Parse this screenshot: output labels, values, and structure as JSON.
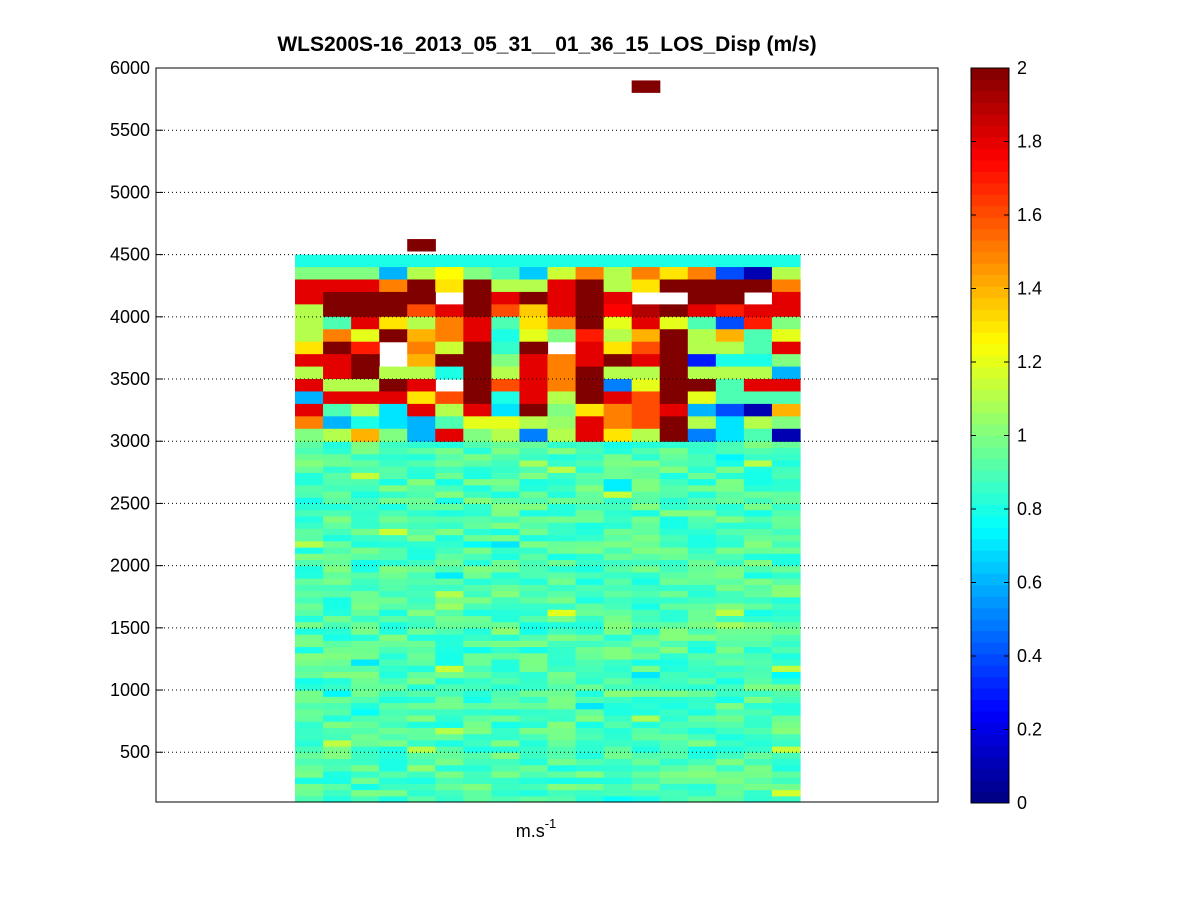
{
  "chart_data": {
    "type": "heatmap",
    "title": "WLS200S-16_2013_05_31__01_36_15_LOS_Disp (m/s)",
    "xlabel": "m.s",
    "xlabel_superscript": "-1",
    "ylabel": "",
    "ylim": [
      100,
      6000
    ],
    "y_ticks": [
      "500",
      "1000",
      "1500",
      "2000",
      "2500",
      "3000",
      "3500",
      "4000",
      "4500",
      "5000",
      "5500",
      "6000"
    ],
    "grid": "horizontal dotted at y ticks",
    "colorbar": {
      "colormap": "jet",
      "range": [
        0,
        2
      ],
      "ticks": [
        "0",
        "0.2",
        "0.4",
        "0.6",
        "0.8",
        "1",
        "1.2",
        "1.4",
        "1.6",
        "1.8",
        "2"
      ]
    },
    "columns": 18,
    "row_height_m": 50,
    "top_rows": {
      "bottom_altitude_m": 3000,
      "rows_top_to_bottom": [
        [
          0.8,
          0.8,
          0.8,
          0.8,
          0.8,
          0.8,
          0.8,
          0.8,
          0.8,
          0.8,
          0.8,
          0.8,
          0.8,
          0.8,
          0.8,
          0.8,
          0.8,
          0.8
        ],
        [
          1.0,
          1.0,
          1.0,
          0.6,
          1.1,
          1.25,
          1.0,
          0.9,
          0.65,
          1.15,
          1.5,
          1.1,
          1.5,
          1.3,
          1.5,
          0.4,
          0.1,
          1.1
        ],
        [
          1.8,
          1.8,
          1.8,
          1.5,
          2.0,
          1.3,
          2.0,
          1.1,
          1.1,
          1.8,
          2.0,
          1.1,
          1.3,
          2.0,
          2.0,
          2.0,
          2.0,
          1.5
        ],
        [
          1.8,
          2.0,
          2.0,
          2.0,
          2.0,
          null,
          2.0,
          1.8,
          2.0,
          1.8,
          2.0,
          1.8,
          null,
          null,
          2.0,
          2.0,
          null,
          1.8
        ],
        [
          1.1,
          2.0,
          2.0,
          2.0,
          1.6,
          1.8,
          2.0,
          1.6,
          1.35,
          1.8,
          2.0,
          1.75,
          1.9,
          2.0,
          1.8,
          1.7,
          1.8,
          1.8
        ],
        [
          1.1,
          0.9,
          1.8,
          1.3,
          1.1,
          1.5,
          1.8,
          0.9,
          1.3,
          1.5,
          2.0,
          1.2,
          1.8,
          1.2,
          0.9,
          0.4,
          1.7,
          1.0
        ],
        [
          1.1,
          1.5,
          1.2,
          2.0,
          1.4,
          1.5,
          1.8,
          0.8,
          1.2,
          1.0,
          1.7,
          1.1,
          1.4,
          2.0,
          1.1,
          1.4,
          0.9,
          1.2
        ],
        [
          1.3,
          2.0,
          1.7,
          null,
          1.5,
          1.15,
          2.0,
          0.85,
          2.0,
          null,
          1.8,
          1.3,
          1.6,
          2.0,
          1.1,
          1.1,
          0.9,
          1.8
        ],
        [
          1.8,
          1.8,
          2.0,
          null,
          1.4,
          2.0,
          2.0,
          1.0,
          1.8,
          1.5,
          1.8,
          2.0,
          1.8,
          2.0,
          0.3,
          0.8,
          0.8,
          1.0
        ],
        [
          1.1,
          1.8,
          2.0,
          1.1,
          1.1,
          0.8,
          2.0,
          1.1,
          1.8,
          1.5,
          2.0,
          1.1,
          1.1,
          2.0,
          1.1,
          1.1,
          1.1,
          0.6
        ],
        [
          1.8,
          1.1,
          1.1,
          2.0,
          1.8,
          null,
          2.0,
          1.6,
          1.8,
          1.5,
          2.0,
          0.5,
          1.2,
          2.0,
          2.0,
          0.9,
          1.8,
          1.8
        ],
        [
          0.6,
          1.8,
          1.8,
          1.8,
          1.3,
          1.6,
          2.0,
          0.8,
          1.8,
          1.1,
          2.0,
          1.8,
          1.6,
          2.0,
          1.2,
          0.9,
          0.9,
          0.9
        ],
        [
          1.8,
          0.9,
          1.1,
          0.7,
          1.8,
          1.1,
          1.8,
          0.7,
          2.0,
          1.0,
          1.3,
          1.5,
          1.6,
          1.8,
          0.6,
          0.4,
          0.1,
          1.4
        ],
        [
          1.5,
          0.6,
          0.8,
          0.7,
          0.6,
          0.9,
          1.2,
          1.2,
          1.1,
          1.05,
          1.8,
          1.5,
          1.6,
          2.0,
          1.1,
          0.7,
          1.1,
          1.0
        ],
        [
          1.0,
          1.1,
          1.4,
          1.0,
          0.6,
          1.8,
          1.0,
          1.1,
          0.5,
          1.1,
          1.8,
          1.3,
          1.1,
          2.0,
          0.5,
          0.7,
          0.9,
          0.1
        ]
      ]
    },
    "outliers": [
      {
        "column": 4,
        "altitude_m": 4575,
        "value": 2.0
      },
      {
        "column": 12,
        "altitude_m": 5850,
        "value": 2.0
      }
    ],
    "lower_region": {
      "altitude_range_m": [
        100,
        3000
      ],
      "typical_value": 0.9,
      "value_range": [
        0.7,
        1.2
      ]
    }
  }
}
